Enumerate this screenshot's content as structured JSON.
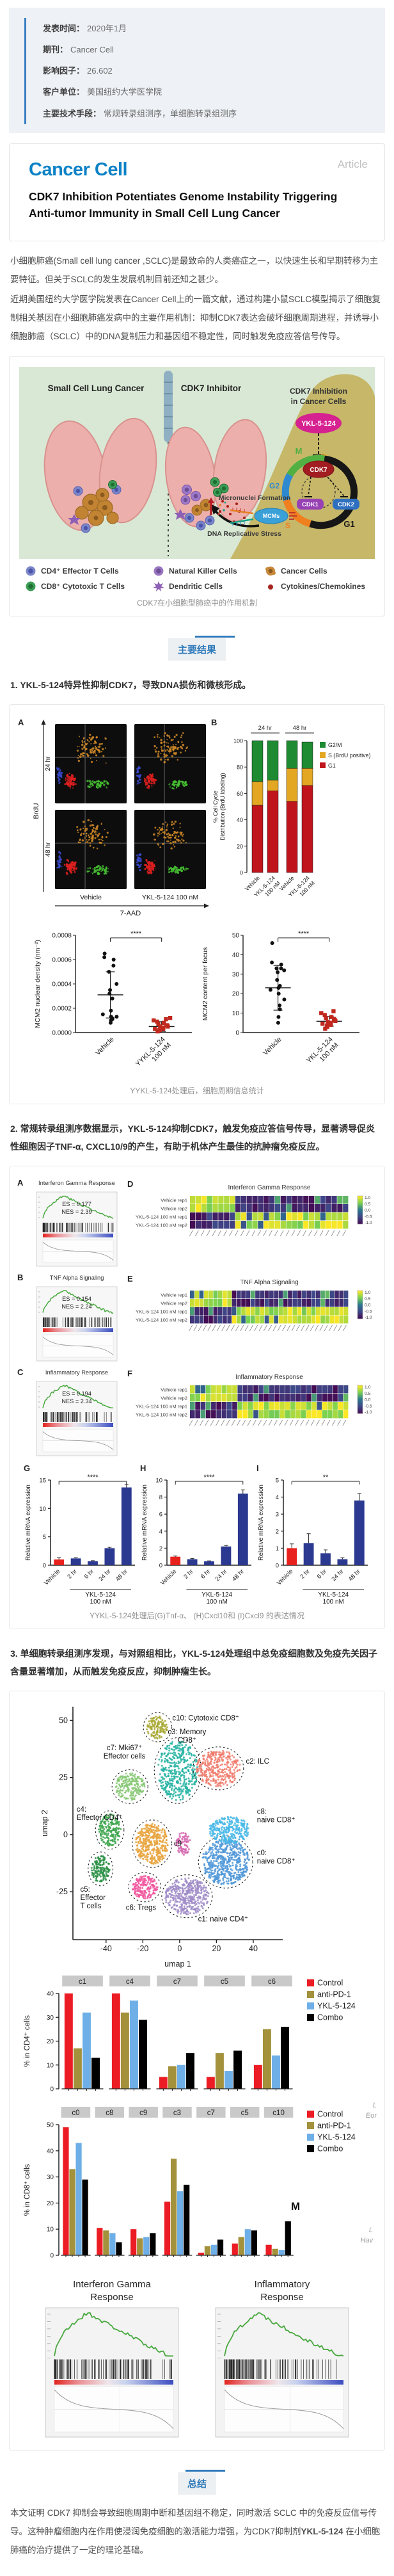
{
  "meta": {
    "rows": [
      {
        "label": "发表时间：",
        "value": "2020年1月"
      },
      {
        "label": "期刊：",
        "value": "Cancer Cell"
      },
      {
        "label": "影响因子：",
        "value": "26.602"
      },
      {
        "label": "客户单位：",
        "value": "美国纽约大学医学院"
      },
      {
        "label": "主要技术手段：",
        "value": "常规转录组测序，单细胞转录组测序"
      }
    ]
  },
  "article": {
    "journal_logo": "Cancer Cell",
    "type_label": "Article",
    "title": "CDK7 Inhibition Potentiates Genome Instability Triggering Anti-tumor Immunity in Small Cell Lung Cancer"
  },
  "intro": {
    "p1": "小细胞肺癌(Small cell lung cancer ,SCLC)是最致命的人类癌症之一，以快速生长和早期转移为主要特征。但关于SCLC的发生发展机制目前还知之甚少。",
    "p2": "近期美国纽约大学医学院发表在Cancer Cell上的一篇文献，通过构建小鼠SCLC模型揭示了细胞复制相关基因在小细胞肺癌发病中的主要作用机制：抑制CDK7表达会破坏细胞周期进程，并诱导小细胞肺癌（SCLC）中的DNA复制压力和基因组不稳定性，同时触发免疫应答信号传导。"
  },
  "ga": {
    "left_title": "Small Cell Lung Cancer",
    "right_title": "CDK7 Inhibitor",
    "box_title_l1": "CDK7 Inhibition",
    "box_title_l2": "in Cancer Cells",
    "drug": "YKL-5-124",
    "cdk7": "CDK7",
    "cdk1": "CDK1",
    "cdk2": "CDK2",
    "mcms": "MCMs",
    "phases": {
      "m": "M",
      "g2": "G2",
      "s": "S",
      "g1": "G1"
    },
    "micronuclei": "Micronuclei Formation",
    "dna_stress": "DNA Replicative Stress",
    "legend": [
      {
        "label": "CD4⁺ Effector T Cells",
        "color": "#7b86c9"
      },
      {
        "label": "Natural Killer Cells",
        "color": "#9a76c1"
      },
      {
        "label": "Cancer Cells",
        "color": "#c8883a"
      },
      {
        "label": "CD8⁺ Cytotoxic T Cells",
        "color": "#3d9e55"
      },
      {
        "label": "Dendritic Cells",
        "color": "#8d5fb5"
      },
      {
        "label": "Cytokines/Chemokines",
        "color": "#a6251f"
      }
    ],
    "caption": "CDK7在小细胞型肺癌中的作用机制"
  },
  "sections": {
    "results_badge": "主要结果",
    "summary_badge": "总结",
    "h1": "1. YKL-5-124特异性抑制CDK7，导致DNA损伤和微核形成。",
    "h2": "2. 常规转录组测序数据显示，YKL-5-124抑制CDK7，触发免疫应答信号传导，显著诱导促炎性细胞因子TNF-α, CXCL10/9的产生，有助于机体产生最佳的抗肿瘤免疫反应。",
    "h3": "3. 单细胞转录组测序发现，与对照组相比，YKL-5-124处理组中总免疫细胞数及免疫先关因子含量显著增加，从而触发免疫反应，抑制肿瘤生长。",
    "summary_pre": "本文证明 CDK7 抑制会导致细胞周期中断和基因组不稳定，同时激活 SCLC 中的免疫反应信号传导。这种肿瘤细胞内在作用使浸润免疫细胞的激活能力增强，为CDK7抑制剂",
    "summary_bold": "YKL-5-124",
    "summary_post": " 在小细胞肺癌的治疗提供了一定的理论基础。"
  },
  "fig1": {
    "caption": "YYKL-5-124处理后，细胞周期信息统计"
  },
  "fig2": {
    "caption": "YYKL-5-124处理后(G)Tnf-α、 (H)Cxcl10和 (I)Cxcl9 的表达情况"
  },
  "fig3": {
    "fragments": {
      "f1a": "L",
      "f1b": "Eor",
      "m": "M",
      "f2a": "L",
      "f2b": "Hav"
    }
  },
  "chart_data": {
    "flowA": {
      "type": "flow",
      "letter": "A",
      "rows": [
        "24 hr",
        "48 hr"
      ],
      "cols": [
        "Vehicle",
        "YKL-5-124 100 nM"
      ],
      "xlabel": "7-AAD",
      "ylabel": "BrdU"
    },
    "cellcycle": {
      "type": "stackedBar",
      "letter": "B",
      "ylabel": [
        "% Cell Cycle",
        "Distribution  (BrdU labeling)"
      ],
      "ylim": [
        0,
        100
      ],
      "yticks": [
        0,
        20,
        40,
        60,
        80,
        100
      ],
      "groups": [
        "24 hr",
        "48 hr"
      ],
      "categories": [
        "Vehicle",
        "YKL-5-124|100 nM",
        "Vehicle",
        "YKL-5-124|100 nM"
      ],
      "series": [
        {
          "name": "G1",
          "color": "#c0141c",
          "values": [
            51,
            62,
            54,
            66
          ]
        },
        {
          "name": "S (BrdU positive)",
          "color": "#e3a723",
          "values": [
            18,
            8,
            25,
            13
          ]
        },
        {
          "name": "G2/M",
          "color": "#1e8b33",
          "values": [
            31,
            30,
            21,
            20
          ]
        }
      ],
      "legend": [
        {
          "label": "G2/M",
          "color": "#1e8b33"
        },
        {
          "label": "S (BrdU positive)",
          "color": "#e3a723"
        },
        {
          "label": "G1",
          "color": "#c0141c"
        }
      ]
    },
    "mcmDensity": {
      "type": "dotPlot",
      "sig": "****",
      "ylabel": "MCM2 nuclear density (nm⁻²)",
      "ylim": [
        0,
        0.0008
      ],
      "yticks": [
        "0.0000",
        "0.0002",
        "0.0004",
        "0.0006",
        "0.0008"
      ],
      "groups": [
        {
          "label": "Vehicle",
          "color": "#111111",
          "marker": "circle",
          "mean": 0.00031,
          "sd": 0.00019,
          "points": [
            8e-05,
            0.0001,
            0.00011,
            0.00012,
            0.00013,
            0.00013,
            0.00015,
            0.00018,
            0.00028,
            0.00032,
            0.00035,
            0.0004,
            0.0005,
            0.00055,
            0.0006,
            0.00062,
            0.00065
          ]
        },
        {
          "label": "YYKL-5-124|100 nM",
          "color": "#c0281e",
          "marker": "square",
          "mean": 5e-05,
          "sd": 4e-05,
          "points": [
            1e-05,
            2e-05,
            2e-05,
            3e-05,
            3e-05,
            4e-05,
            4e-05,
            5e-05,
            5e-05,
            6e-05,
            6e-05,
            7e-05,
            8e-05,
            9e-05,
            0.0001,
            0.00011,
            0.00012
          ]
        }
      ]
    },
    "mcmFocus": {
      "type": "dotPlot",
      "sig": "****",
      "ylabel": "MCM2 content per focus",
      "ylim": [
        0,
        50
      ],
      "yticks": [
        0,
        10,
        20,
        30,
        40,
        50
      ],
      "groups": [
        {
          "label": "Vehicle",
          "color": "#111111",
          "marker": "circle",
          "mean": 23,
          "sd": 11.5,
          "points": [
            5,
            8,
            12,
            14,
            17,
            20,
            22,
            23,
            24,
            27,
            31,
            32,
            33,
            33,
            35,
            36,
            46
          ]
        },
        {
          "label": "YKL-5-124|100 nM",
          "color": "#c0281e",
          "marker": "square",
          "mean": 5.8,
          "sd": 2.5,
          "points": [
            2,
            3,
            3.5,
            4,
            4.5,
            5,
            5,
            5.5,
            6,
            6.5,
            7,
            7.5,
            8,
            9,
            10,
            11
          ]
        }
      ]
    },
    "gseaA": {
      "type": "gsea",
      "letter": "A",
      "title": "Interferon Gamma Response",
      "es": "ES = 0.177",
      "nes": "NES = 2.39",
      "seed": 3
    },
    "gseaB": {
      "type": "gsea",
      "letter": "B",
      "title": "TNF Alpha Signaling",
      "es": "ES = 0.154",
      "nes": "NES = 2.24",
      "seed": 4
    },
    "gseaC": {
      "type": "gsea",
      "letter": "C",
      "title": "Inflammatory Response",
      "es": "ES = 0.194",
      "nes": "NES = 2.34",
      "seed": 6
    },
    "heatD": {
      "type": "heatmap",
      "letter": "D",
      "title": "Interferon Gamma Response",
      "rows": [
        "Vehicle rep1",
        "Vehicle rep2",
        "YKL-5-124 100 nM rep1",
        "YKL-5-124 100 nM rep2"
      ],
      "cols": 28,
      "split": 8,
      "seed": 11,
      "cbar": [
        "1.0",
        "0.5",
        "0.0",
        "-0.5",
        "-1.0"
      ]
    },
    "heatE": {
      "type": "heatmap",
      "letter": "E",
      "title": "TNF Alpha Signaling",
      "rows": [
        "Vehicle rep1",
        "Vehicle rep2",
        "YKL-5-124 100 nM rep1",
        "YKL-5-124 100 nM rep2"
      ],
      "cols": 34,
      "split": 9,
      "seed": 12,
      "cbar": [
        "1.0",
        "0.5",
        "0.0",
        "-0.5",
        "-1.0"
      ]
    },
    "heatF": {
      "type": "heatmap",
      "letter": "F",
      "title": "Inflammatory Response",
      "rows": [
        "Vehicle rep1",
        "Vehicle rep2",
        "YKL-5-124 100 nM rep1",
        "YKL-5-124 100 nM rep2"
      ],
      "cols": 30,
      "split": 9,
      "seed": 13,
      "cbar": [
        "1.0",
        "0.5",
        "0.0",
        "-0.5",
        "-1.0"
      ]
    },
    "barG": {
      "type": "bar",
      "letter": "G",
      "sig": "****",
      "ylabel": "Relative mRNA expression",
      "ylim": [
        0,
        15
      ],
      "yticks": [
        0,
        5,
        10,
        15
      ],
      "categories": [
        "Vehicle",
        "2 hr",
        "6 hr",
        "24 hr",
        "48 hr"
      ],
      "values": [
        1,
        1.2,
        0.7,
        3,
        13.7
      ],
      "errors": [
        0.3,
        0.12,
        0.1,
        0.15,
        0.5
      ],
      "colors": [
        "#e8211d",
        "#2b3990",
        "#2b3990",
        "#2b3990",
        "#2b3990"
      ],
      "group_label": [
        "YKL-5-124",
        "100 nM"
      ]
    },
    "barH": {
      "type": "bar",
      "letter": "H",
      "sig": "****",
      "ylabel": "Relative mRNA expression",
      "ylim": [
        0,
        10
      ],
      "yticks": [
        0,
        2,
        4,
        6,
        8,
        10
      ],
      "categories": [
        "Vehicle",
        "2 hr",
        "6 hr",
        "24 hr",
        "48 hr"
      ],
      "values": [
        1,
        0.7,
        0.45,
        2.2,
        8.4
      ],
      "errors": [
        0.08,
        0.08,
        0.06,
        0.12,
        0.45
      ],
      "colors": [
        "#e8211d",
        "#2b3990",
        "#2b3990",
        "#2b3990",
        "#2b3990"
      ],
      "group_label": [
        "YKL-5-124",
        "100 nM"
      ]
    },
    "barI": {
      "type": "bar",
      "letter": "I",
      "sig": "**",
      "ylabel": "Relative mRNA expression",
      "ylim": [
        0,
        5
      ],
      "yticks": [
        0,
        1,
        2,
        3,
        4,
        5
      ],
      "categories": [
        "Vehicle",
        "2 hr",
        "6 hr",
        "24 hr",
        "48 hr"
      ],
      "values": [
        1,
        1.3,
        0.7,
        0.35,
        3.8
      ],
      "errors": [
        0.25,
        0.55,
        0.2,
        0.08,
        0.4
      ],
      "colors": [
        "#e8211d",
        "#2b3990",
        "#2b3990",
        "#2b3990",
        "#2b3990"
      ],
      "group_label": [
        "YKL-5-124",
        "100 nM"
      ]
    },
    "umap": {
      "type": "umap",
      "xlabel": "umap 1",
      "ylabel": "umap 2",
      "xticks": [
        -40,
        -20,
        0,
        20,
        40
      ],
      "yticks": [
        -25,
        0,
        25,
        50
      ],
      "clusters": [
        {
          "id": "c10",
          "color": "#a8a832",
          "cx": -12,
          "cy": 47,
          "rx": 6,
          "ry": 5,
          "n": 120,
          "dashed": true
        },
        {
          "id": "c3",
          "color": "#25b3a2",
          "cx": -1,
          "cy": 28,
          "rx": 11,
          "ry": 13,
          "n": 420,
          "dashed": true
        },
        {
          "id": "c2",
          "color": "#f07b6c",
          "cx": 21,
          "cy": 29,
          "rx": 12,
          "ry": 8,
          "n": 330,
          "dashed": true
        },
        {
          "id": "c7",
          "color": "#86c873",
          "cx": -27,
          "cy": 21,
          "rx": 8,
          "ry": 6,
          "n": 200,
          "dashed": true
        },
        {
          "id": "cOrange",
          "color": "#e8a33d",
          "cx": -15,
          "cy": -4,
          "rx": 9,
          "ry": 9,
          "n": 380,
          "dashed": true
        },
        {
          "id": "c4",
          "color": "#3ca54c",
          "cx": -38,
          "cy": 2,
          "rx": 6,
          "ry": 7,
          "n": 180,
          "dashed": true
        },
        {
          "id": "c5",
          "color": "#2c9147",
          "cx": -43,
          "cy": -15,
          "rx": 5,
          "ry": 6,
          "n": 150,
          "dashed": true
        },
        {
          "id": "c6",
          "color": "#f0559e",
          "cx": -19,
          "cy": -23,
          "rx": 7,
          "ry": 5,
          "n": 170,
          "dashed": true
        },
        {
          "id": "c1",
          "color": "#a08cc8",
          "cx": 4,
          "cy": -27,
          "rx": 12,
          "ry": 8,
          "n": 420,
          "dashed": true
        },
        {
          "id": "c0",
          "color": "#4f97d8",
          "cx": 25,
          "cy": -12,
          "rx": 13,
          "ry": 10,
          "n": 520,
          "dashed": true
        },
        {
          "id": "c8",
          "color": "#49b8e8",
          "cx": 27,
          "cy": 2,
          "rx": 11,
          "ry": 6,
          "n": 300,
          "dashed": false
        },
        {
          "id": "c9",
          "color": "#d66ab0",
          "cx": 2,
          "cy": -4,
          "rx": 4,
          "ry": 5,
          "n": 90,
          "dashed": false
        }
      ],
      "labels": [
        {
          "lines": [
            "c10: Cytotoxic CD8⁺"
          ],
          "x": -4,
          "y": 50,
          "an": "start"
        },
        {
          "lines": [
            "c3: Memory",
            "CD8⁺"
          ],
          "x": 4,
          "y": 44,
          "an": "middle"
        },
        {
          "lines": [
            "c2: ILC"
          ],
          "x": 36,
          "y": 31,
          "an": "start"
        },
        {
          "lines": [
            "c7: Mki67⁺",
            "Effector cells"
          ],
          "x": -30,
          "y": 37,
          "an": "middle"
        },
        {
          "lines": [
            "c4:",
            "Effector CD4⁺"
          ],
          "x": -56,
          "y": 10,
          "an": "start"
        },
        {
          "lines": [
            "c5:",
            "Effector",
            "T cells"
          ],
          "x": -54,
          "y": -25,
          "an": "start"
        },
        {
          "lines": [
            "c6: Tregs"
          ],
          "x": -21,
          "y": -33,
          "an": "middle"
        },
        {
          "lines": [
            "c1: naive CD4⁺"
          ],
          "x": 10,
          "y": -38,
          "an": "start"
        },
        {
          "lines": [
            "c0:",
            "naive CD8⁺"
          ],
          "x": 42,
          "y": -9,
          "an": "start"
        },
        {
          "lines": [
            "c8:",
            "naive CD8⁺"
          ],
          "x": 42,
          "y": 9,
          "an": "start"
        },
        {
          "lines": [
            "c9"
          ],
          "x": -1,
          "y": -5,
          "an": "middle"
        }
      ]
    },
    "cd4": {
      "type": "groupedBar",
      "ylabel": "% in CD4⁺ cells",
      "ylim": [
        0,
        40
      ],
      "yticks": [
        0,
        10,
        20,
        30,
        40
      ],
      "chips": [
        "c1",
        "c4",
        "c7",
        "c5",
        "c6"
      ],
      "legend": [
        "Control",
        "anti-PD-1",
        "YKL-5-124",
        "Combo"
      ],
      "colors": [
        "#ec1c24",
        "#a3913b",
        "#6fafe7",
        "#000000"
      ],
      "values": [
        [
          40,
          17,
          32,
          13
        ],
        [
          40,
          32,
          37,
          29
        ],
        [
          5,
          9.5,
          10,
          15
        ],
        [
          5,
          15,
          7.5,
          16
        ],
        [
          10,
          25,
          14,
          26
        ]
      ]
    },
    "cd8": {
      "type": "groupedBar",
      "ylabel": "% in CD8⁺ cells",
      "ylim": [
        0,
        50
      ],
      "yticks": [
        0,
        10,
        20,
        30,
        40,
        50
      ],
      "chips": [
        "c0",
        "c8",
        "c9",
        "c3",
        "c7",
        "c5",
        "c10"
      ],
      "legend": [
        "Control",
        "anti-PD-1",
        "YKL-5-124",
        "Combo"
      ],
      "colors": [
        "#ec1c24",
        "#a3913b",
        "#6fafe7",
        "#000000"
      ],
      "values": [
        [
          49,
          33,
          43,
          29
        ],
        [
          10.5,
          9.5,
          8.5,
          5
        ],
        [
          10,
          6.5,
          7,
          8.5
        ],
        [
          20.5,
          37,
          24.5,
          27
        ],
        [
          1,
          3.5,
          4,
          6
        ],
        [
          4.5,
          7,
          10,
          9.5
        ],
        [
          4,
          2.5,
          2,
          13
        ]
      ]
    },
    "gseaIFN": {
      "type": "gseaLarge",
      "title_lines": [
        "Interferon Gamma",
        "Response"
      ],
      "seed": 21
    },
    "gseaInf": {
      "type": "gseaLarge",
      "title_lines": [
        "Inflammatory",
        "Response"
      ],
      "seed": 22
    }
  }
}
